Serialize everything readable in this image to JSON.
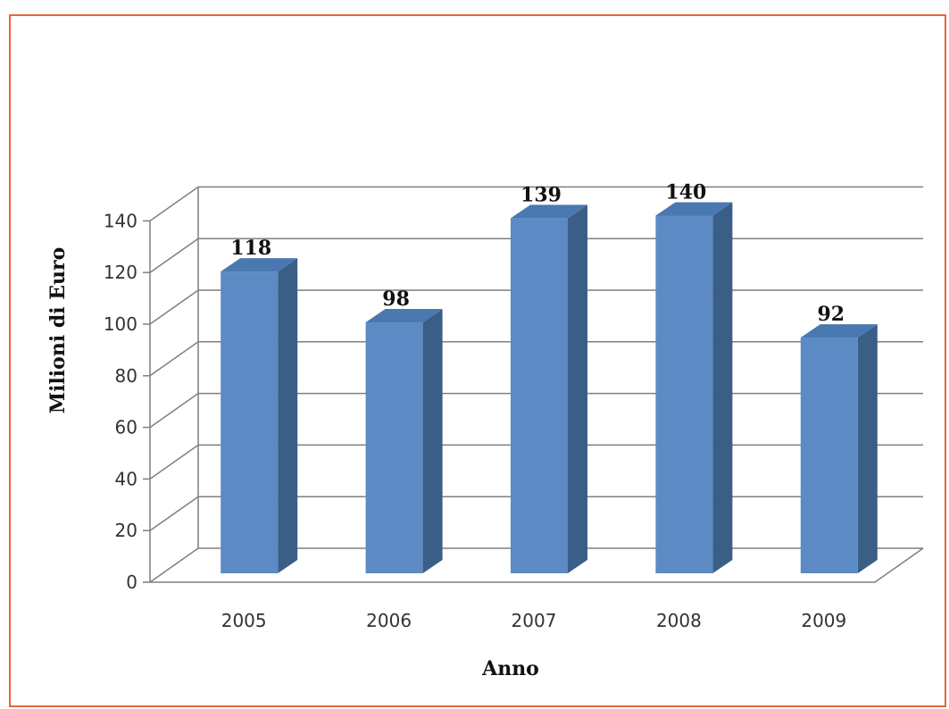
{
  "chart_data": {
    "type": "bar",
    "categories": [
      "2005",
      "2006",
      "2007",
      "2008",
      "2009"
    ],
    "values": [
      118,
      98,
      139,
      140,
      92
    ],
    "xlabel": "Anno",
    "ylabel": "Milioni di Euro",
    "ylim": [
      0,
      140
    ],
    "yticks": [
      0,
      20,
      40,
      60,
      80,
      100,
      120,
      140
    ],
    "grid": true,
    "legend": "none",
    "style": "3d-column",
    "colors": {
      "bar_front": "#5b8ac4",
      "bar_side": "#3b5e87",
      "bar_top": "#4a78b0",
      "grid": "#7f7f7f",
      "frame": "#e8643c"
    }
  }
}
